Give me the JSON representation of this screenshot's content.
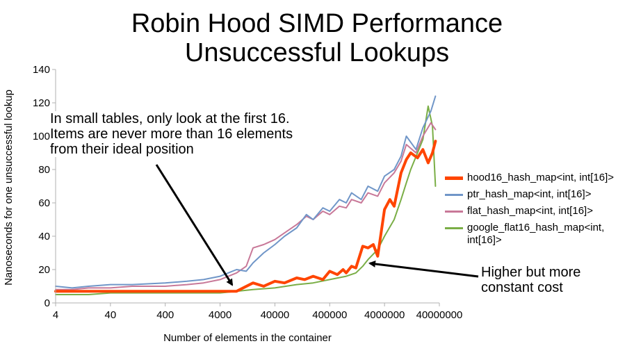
{
  "chart_data": {
    "type": "line",
    "title": [
      "Robin Hood SIMD Performance",
      "Unsuccessful Lookups"
    ],
    "xlabel": "Number of elements in the container",
    "ylabel": "Nanoseconds for one unsuccessful lookup",
    "xscale": "log",
    "xlim": [
      4,
      40000000
    ],
    "ylim": [
      0,
      140
    ],
    "xticks": [
      4,
      40,
      400,
      4000,
      40000,
      400000,
      4000000,
      40000000
    ],
    "xticklabels": [
      "4",
      "40",
      "400",
      "4000",
      "40000",
      "400000",
      "4000000",
      "40000000"
    ],
    "yticks": [
      0,
      20,
      40,
      60,
      80,
      100,
      120,
      140
    ],
    "yticklabels": [
      "0",
      "20",
      "40",
      "60",
      "80",
      "100",
      "120",
      "140"
    ],
    "grid": false,
    "legend_position": "right",
    "series": [
      {
        "name": "hood16_hash_map<int, int[16]>",
        "color": "#ff4500",
        "width": 4,
        "x": [
          4,
          8,
          16,
          40,
          100,
          400,
          1000,
          4000,
          8000,
          16000,
          25000,
          40000,
          60000,
          100000,
          140000,
          200000,
          300000,
          400000,
          550000,
          700000,
          800000,
          1000000,
          1200000,
          1600000,
          2000000,
          2500000,
          3000000,
          4000000,
          5000000,
          6000000,
          8000000,
          10000000,
          12000000,
          16000000,
          20000000,
          25000000,
          30000000,
          34000000
        ],
        "y": [
          7,
          7,
          7,
          7,
          7,
          7,
          7,
          7,
          7,
          12,
          10,
          13,
          12,
          15,
          14,
          16,
          14,
          19,
          17,
          20,
          18,
          22,
          21,
          34,
          33,
          35,
          28,
          56,
          62,
          58,
          78,
          86,
          90,
          87,
          92,
          84,
          90,
          97
        ]
      },
      {
        "name": "ptr_hash_map<int, int[16]>",
        "color": "#7096c8",
        "width": 2,
        "x": [
          4,
          8,
          16,
          40,
          100,
          400,
          1000,
          2000,
          4000,
          8000,
          12000,
          16000,
          25000,
          40000,
          60000,
          100000,
          150000,
          200000,
          300000,
          400000,
          600000,
          800000,
          1000000,
          1500000,
          2000000,
          3000000,
          4000000,
          6000000,
          8000000,
          10000000,
          15000000,
          20000000,
          28000000,
          34000000
        ],
        "y": [
          10,
          9,
          10,
          11,
          11,
          12,
          13,
          14,
          16,
          20,
          19,
          24,
          30,
          35,
          40,
          45,
          53,
          50,
          57,
          55,
          62,
          60,
          66,
          62,
          70,
          67,
          76,
          80,
          88,
          100,
          92,
          105,
          115,
          124
        ]
      },
      {
        "name": "flat_hash_map<int, int[16]>",
        "color": "#c87898",
        "width": 2,
        "x": [
          4,
          8,
          16,
          40,
          100,
          400,
          1000,
          2000,
          4000,
          8000,
          12000,
          16000,
          25000,
          40000,
          60000,
          100000,
          150000,
          200000,
          300000,
          400000,
          600000,
          800000,
          1000000,
          1500000,
          2000000,
          3000000,
          4000000,
          6000000,
          8000000,
          10000000,
          15000000,
          20000000,
          28000000,
          34000000
        ],
        "y": [
          8,
          8,
          9,
          9,
          10,
          10,
          11,
          12,
          14,
          18,
          22,
          33,
          35,
          38,
          42,
          47,
          52,
          50,
          55,
          53,
          58,
          57,
          62,
          60,
          66,
          64,
          72,
          78,
          85,
          95,
          90,
          100,
          108,
          104
        ]
      },
      {
        "name": "google_flat16_hash_map<int, int[16]>",
        "color": "#7aae46",
        "width": 2,
        "x": [
          4,
          8,
          16,
          40,
          100,
          400,
          1000,
          4000,
          8000,
          16000,
          40000,
          100000,
          200000,
          400000,
          800000,
          1200000,
          1600000,
          2000000,
          3000000,
          4000000,
          6000000,
          8000000,
          10000000,
          12000000,
          16000000,
          20000000,
          25000000,
          30000000,
          34000000
        ],
        "y": [
          5,
          5,
          5,
          6,
          6,
          6,
          6,
          6,
          7,
          8,
          9,
          11,
          12,
          14,
          16,
          18,
          22,
          26,
          32,
          40,
          50,
          62,
          72,
          80,
          90,
          98,
          118,
          106,
          70
        ]
      }
    ]
  },
  "annotations": {
    "small_tables": "In small tables, only look at the first 16. Items are never more than 16 elements from their ideal position",
    "higher_cost": "Higher but more constant cost"
  }
}
